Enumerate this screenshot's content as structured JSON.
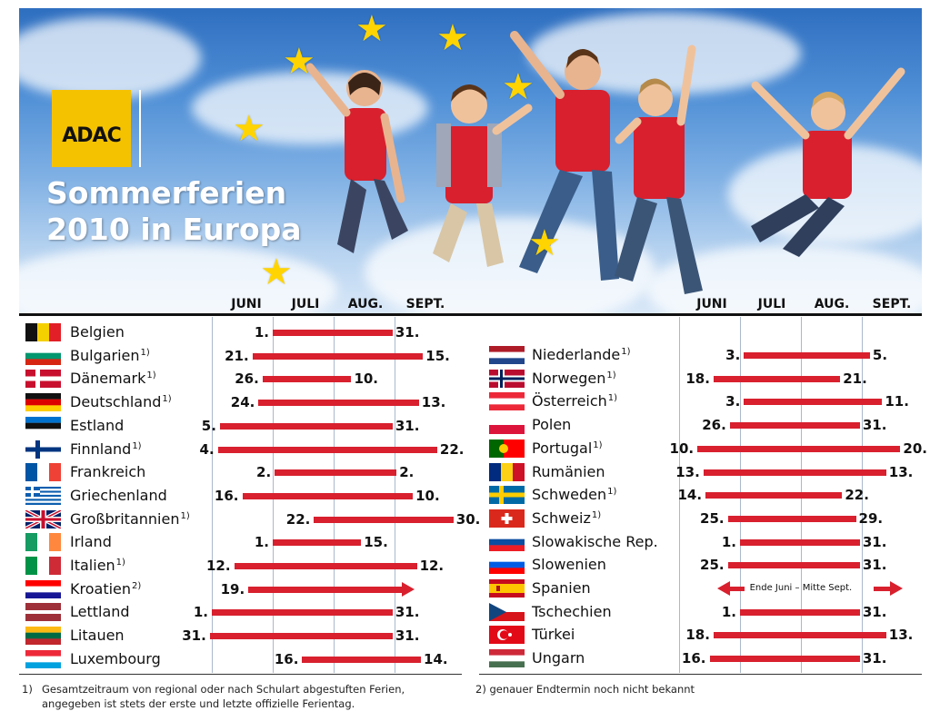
{
  "header": {
    "logo_text": "ADAC",
    "title_line1": "Sommerferien",
    "title_line2": "2010 in Europa"
  },
  "colors": {
    "bar": "#d8202e",
    "logo": "#f5c200",
    "star": "#ffd400"
  },
  "chart_data": {
    "type": "bar",
    "subtype": "gantt-timeline",
    "year": 2010,
    "months": [
      "JUNI",
      "JULI",
      "AUG.",
      "SEPT."
    ],
    "grid": true,
    "left": [
      {
        "country": "Belgien",
        "note": "",
        "start": "1.",
        "end": "31.",
        "start_date": "2010-07-01",
        "end_date": "2010-08-31"
      },
      {
        "country": "Bulgarien",
        "note": "1)",
        "start": "21.",
        "end": "15.",
        "start_date": "2010-06-21",
        "end_date": "2010-09-15"
      },
      {
        "country": "Dänemark",
        "note": "1)",
        "start": "26.",
        "end": "10.",
        "start_date": "2010-06-26",
        "end_date": "2010-08-10"
      },
      {
        "country": "Deutschland",
        "note": "1)",
        "start": "24.",
        "end": "13.",
        "start_date": "2010-06-24",
        "end_date": "2010-09-13"
      },
      {
        "country": "Estland",
        "note": "",
        "start": "5.",
        "end": "31.",
        "start_date": "2010-06-05",
        "end_date": "2010-08-31"
      },
      {
        "country": "Finnland",
        "note": "1)",
        "start": "4.",
        "end": "22.",
        "start_date": "2010-06-04",
        "end_date": "2010-09-22"
      },
      {
        "country": "Frankreich",
        "note": "",
        "start": "2.",
        "end": "2.",
        "start_date": "2010-07-02",
        "end_date": "2010-09-02"
      },
      {
        "country": "Griechenland",
        "note": "",
        "start": "16.",
        "end": "10.",
        "start_date": "2010-06-16",
        "end_date": "2010-09-10"
      },
      {
        "country": "Großbritannien",
        "note": "1)",
        "start": "22.",
        "end": "30.",
        "start_date": "2010-07-22",
        "end_date": "2010-09-30"
      },
      {
        "country": "Irland",
        "note": "",
        "start": "1.",
        "end": "15.",
        "start_date": "2010-07-01",
        "end_date": "2010-08-15"
      },
      {
        "country": "Italien",
        "note": "1)",
        "start": "12.",
        "end": "12.",
        "start_date": "2010-06-12",
        "end_date": "2010-09-12"
      },
      {
        "country": "Kroatien",
        "note": "2)",
        "start": "19.",
        "end": "",
        "start_date": "2010-06-19",
        "end_date": "",
        "open_end": true
      },
      {
        "country": "Lettland",
        "note": "",
        "start": "1.",
        "end": "31.",
        "start_date": "2010-06-01",
        "end_date": "2010-08-31"
      },
      {
        "country": "Litauen",
        "note": "",
        "start": "31.",
        "end": "31.",
        "start_date": "2010-05-31",
        "end_date": "2010-08-31"
      },
      {
        "country": "Luxembourg",
        "note": "",
        "start": "16.",
        "end": "14.",
        "start_date": "2010-07-16",
        "end_date": "2010-09-14"
      }
    ],
    "right": [
      {
        "country": "Niederlande",
        "note": "1)",
        "start": "3.",
        "end": "5.",
        "start_date": "2010-07-03",
        "end_date": "2010-09-05"
      },
      {
        "country": "Norwegen",
        "note": "1)",
        "start": "18.",
        "end": "21.",
        "start_date": "2010-06-18",
        "end_date": "2010-08-21"
      },
      {
        "country": "Österreich",
        "note": "1)",
        "start": "3.",
        "end": "11.",
        "start_date": "2010-07-03",
        "end_date": "2010-09-11"
      },
      {
        "country": "Polen",
        "note": "",
        "start": "26.",
        "end": "31.",
        "start_date": "2010-06-26",
        "end_date": "2010-08-31"
      },
      {
        "country": "Portugal",
        "note": "1)",
        "start": "10.",
        "end": "20.",
        "start_date": "2010-06-10",
        "end_date": "2010-09-20"
      },
      {
        "country": "Rumänien",
        "note": "",
        "start": "13.",
        "end": "13.",
        "start_date": "2010-06-13",
        "end_date": "2010-09-13"
      },
      {
        "country": "Schweden",
        "note": "1)",
        "start": "14.",
        "end": "22.",
        "start_date": "2010-06-14",
        "end_date": "2010-08-22"
      },
      {
        "country": "Schweiz",
        "note": "1)",
        "start": "25.",
        "end": "29.",
        "start_date": "2010-06-25",
        "end_date": "2010-08-29"
      },
      {
        "country": "Slowakische Rep.",
        "note": "",
        "start": "1.",
        "end": "31.",
        "start_date": "2010-07-01",
        "end_date": "2010-08-31"
      },
      {
        "country": "Slowenien",
        "note": "",
        "start": "25.",
        "end": "31.",
        "start_date": "2010-06-25",
        "end_date": "2010-08-31"
      },
      {
        "country": "Spanien",
        "note": "",
        "start": "",
        "end": "",
        "start_date": "2010-06-25",
        "end_date": "2010-09-15",
        "text": "Ende Juni – Mitte Sept."
      },
      {
        "country": "Tschechien",
        "note": "",
        "start": "1.",
        "end": "31.",
        "start_date": "2010-07-01",
        "end_date": "2010-08-31"
      },
      {
        "country": "Türkei",
        "note": "",
        "start": "18.",
        "end": "13.",
        "start_date": "2010-06-18",
        "end_date": "2010-09-13"
      },
      {
        "country": "Ungarn",
        "note": "",
        "start": "16.",
        "end": "31.",
        "start_date": "2010-06-16",
        "end_date": "2010-08-31"
      }
    ]
  },
  "footnotes": {
    "note1_marker": "1)",
    "note1_line1": "Gesamtzeitraum von regional oder nach Schulart abgestuften Ferien,",
    "note1_line2": "angegeben ist stets der erste und letzte offizielle Ferientag.",
    "note2": "2) genauer Endtermin noch nicht bekannt"
  }
}
